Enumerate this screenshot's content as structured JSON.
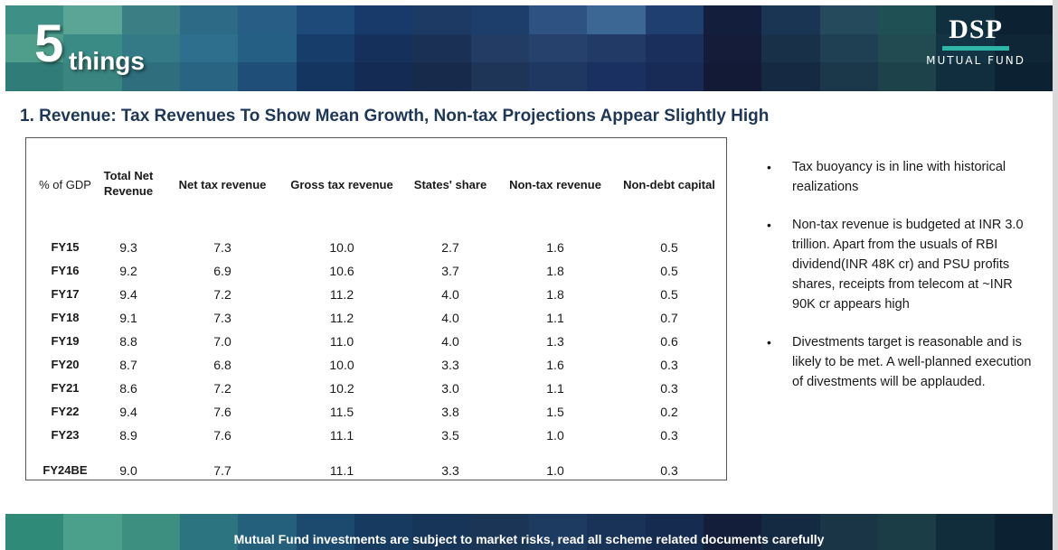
{
  "header": {
    "brand_number": "5",
    "brand_word": "things",
    "logo_main": "DSP",
    "logo_sub": "MUTUAL FUND"
  },
  "title": "1. Revenue: Tax Revenues To Show Mean Growth, Non-tax Projections Appear Slightly High",
  "table": {
    "headers": [
      "% of GDP",
      "Total Net Revenue",
      "Net tax revenue",
      "Gross tax revenue",
      "States' share",
      "Non-tax revenue",
      "Non-debt capital"
    ],
    "rows": [
      [
        "FY15",
        "9.3",
        "7.3",
        "10.0",
        "2.7",
        "1.6",
        "0.5"
      ],
      [
        "FY16",
        "9.2",
        "6.9",
        "10.6",
        "3.7",
        "1.8",
        "0.5"
      ],
      [
        "FY17",
        "9.4",
        "7.2",
        "11.2",
        "4.0",
        "1.8",
        "0.5"
      ],
      [
        "FY18",
        "9.1",
        "7.3",
        "11.2",
        "4.0",
        "1.1",
        "0.7"
      ],
      [
        "FY19",
        "8.8",
        "7.0",
        "11.0",
        "4.0",
        "1.3",
        "0.6"
      ],
      [
        "FY20",
        "8.7",
        "6.8",
        "10.0",
        "3.3",
        "1.6",
        "0.3"
      ],
      [
        "FY21",
        "8.6",
        "7.2",
        "10.2",
        "3.0",
        "1.1",
        "0.3"
      ],
      [
        "FY22",
        "9.4",
        "7.6",
        "11.5",
        "3.8",
        "1.5",
        "0.2"
      ],
      [
        "FY23",
        "8.9",
        "7.6",
        "11.1",
        "3.5",
        "1.0",
        "0.3"
      ],
      [
        "FY24BE",
        "9.0",
        "7.7",
        "11.1",
        "3.3",
        "1.0",
        "0.3"
      ]
    ]
  },
  "bullets": [
    "Tax buoyancy is in line with historical realizations",
    "Non-tax revenue is budgeted at INR 3.0 trillion. Apart from the usuals of RBI dividend(INR 48K cr) and PSU profits shares, receipts from telecom at ~INR 90K cr appears high",
    "Divestments target is reasonable and is likely to be met. A well-planned execution of divestments will be applauded."
  ],
  "footer": {
    "disclaimer": "Mutual Fund investments are subject to market risks, read all scheme related documents carefully"
  },
  "colors": {
    "title": "#1f3756",
    "logo_accent": "#2fb5a8"
  }
}
